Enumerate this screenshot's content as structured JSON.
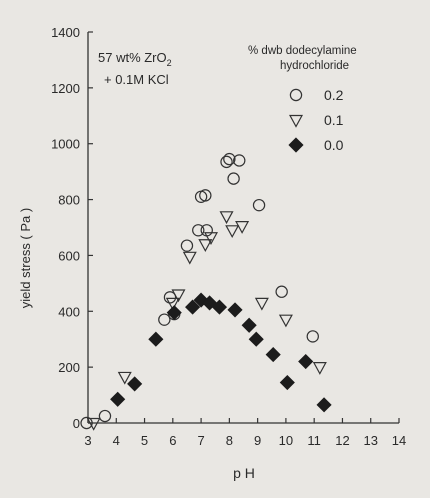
{
  "chart_data": {
    "type": "scatter",
    "xlabel": "p H",
    "ylabel": "yield stress ( Pa )",
    "xlim": [
      3,
      14
    ],
    "ylim": [
      0,
      1400
    ],
    "xticks": [
      3,
      4,
      5,
      6,
      7,
      8,
      9,
      10,
      11,
      12,
      13,
      14
    ],
    "yticks": [
      0,
      200,
      400,
      600,
      800,
      1000,
      1200,
      1400
    ],
    "grid": false,
    "annotation": {
      "line1": "57 wt% ZrO",
      "line1_subscript": "2",
      "line2": "+ 0.1M KCl"
    },
    "legend": {
      "title_line1": "% dwb dodecylamine",
      "title_line2": "hydrochloride",
      "placement": "top-right"
    },
    "series": [
      {
        "name": "0.2",
        "marker": "open-circle",
        "points": [
          [
            2.95,
            0
          ],
          [
            3.6,
            25
          ],
          [
            5.7,
            370
          ],
          [
            5.9,
            450
          ],
          [
            6.05,
            390
          ],
          [
            6.5,
            635
          ],
          [
            6.9,
            690
          ],
          [
            7.0,
            810
          ],
          [
            7.15,
            815
          ],
          [
            7.2,
            690
          ],
          [
            7.9,
            935
          ],
          [
            8.0,
            945
          ],
          [
            8.15,
            875
          ],
          [
            8.35,
            940
          ],
          [
            9.05,
            780
          ],
          [
            9.85,
            470
          ],
          [
            10.95,
            310
          ]
        ]
      },
      {
        "name": "0.1",
        "marker": "open-triangle-down",
        "points": [
          [
            3.2,
            0
          ],
          [
            4.3,
            165
          ],
          [
            6.0,
            430
          ],
          [
            6.2,
            460
          ],
          [
            6.6,
            595
          ],
          [
            7.15,
            640
          ],
          [
            7.35,
            665
          ],
          [
            7.9,
            740
          ],
          [
            8.1,
            690
          ],
          [
            8.45,
            705
          ],
          [
            9.15,
            430
          ],
          [
            10.0,
            370
          ],
          [
            11.2,
            200
          ]
        ]
      },
      {
        "name": "0.0",
        "marker": "filled-diamond",
        "points": [
          [
            4.05,
            85
          ],
          [
            4.65,
            140
          ],
          [
            5.4,
            300
          ],
          [
            6.05,
            395
          ],
          [
            6.7,
            415
          ],
          [
            7.0,
            440
          ],
          [
            7.3,
            430
          ],
          [
            7.65,
            415
          ],
          [
            8.2,
            405
          ],
          [
            8.7,
            350
          ],
          [
            8.95,
            300
          ],
          [
            9.55,
            245
          ],
          [
            10.05,
            145
          ],
          [
            10.7,
            220
          ],
          [
            11.35,
            65
          ]
        ]
      }
    ]
  }
}
